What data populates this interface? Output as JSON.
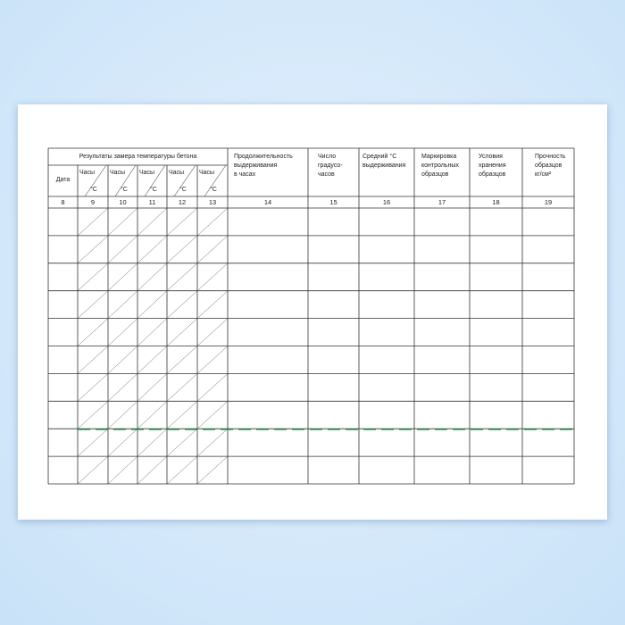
{
  "header": {
    "group_title": "Результаты замера температуры бетона",
    "date": "Дата",
    "hours": "Часы",
    "degrees": "°C",
    "duration": [
      "Продолжительность",
      "выдерживания",
      "в часах"
    ],
    "degree_hours": [
      "Число",
      "градусо-",
      "часов"
    ],
    "avg_temp": [
      "Средний °C",
      "выдерживания"
    ],
    "marking": [
      "Маркировка",
      "контрольных",
      "образцов"
    ],
    "storage": [
      "Условия",
      "хранения",
      "образцов"
    ],
    "strength": [
      "Прочность",
      "образцов",
      "кг/см²"
    ]
  },
  "column_numbers": [
    "8",
    "9",
    "10",
    "11",
    "12",
    "13",
    "14",
    "15",
    "16",
    "17",
    "18",
    "19"
  ],
  "data_rows": 10,
  "colors": {
    "grid": "#333333",
    "artifact": "#1e9a4a"
  }
}
